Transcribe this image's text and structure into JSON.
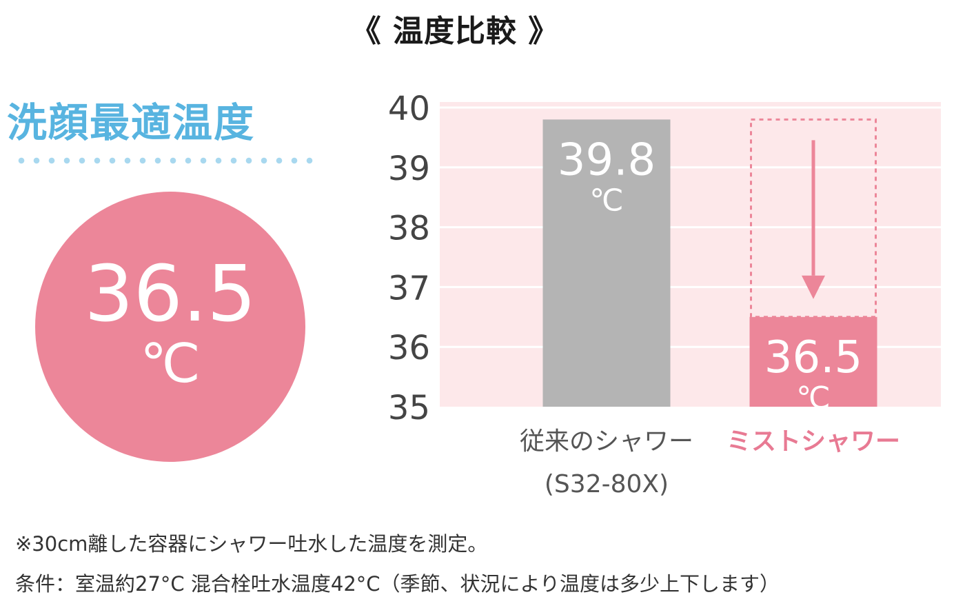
{
  "title": "《 温度比較 》",
  "left_panel": {
    "heading": "洗顔最適温度",
    "value": "36.5",
    "unit": "℃"
  },
  "chart_data": {
    "type": "bar",
    "categories": [
      "従来のシャワー\n(S32-80X)",
      "ミストシャワー"
    ],
    "category_lines": [
      [
        "従来のシャワー",
        "(S32-80X)"
      ],
      [
        "ミストシャワー"
      ]
    ],
    "values": [
      39.8,
      36.5
    ],
    "value_labels": [
      "39.8",
      "36.5"
    ],
    "unit": "℃",
    "ylim": [
      35,
      40
    ],
    "yticks": [
      "40",
      "39",
      "38",
      "37",
      "36",
      "35"
    ],
    "grid": true,
    "colors": {
      "bar_conventional": "#b4b4b4",
      "bar_mist": "#ec8699",
      "plot_background": "#fde8ea",
      "grid": "#ffffff",
      "mist_label": "#e87a93",
      "conventional_label": "#555555"
    }
  },
  "footnotes": [
    "※30cm離した容器にシャワー吐水した温度を測定。",
    "条件：室温約27°C 混合栓吐水温度42°C（季節、状況により温度は多少上下します）"
  ]
}
